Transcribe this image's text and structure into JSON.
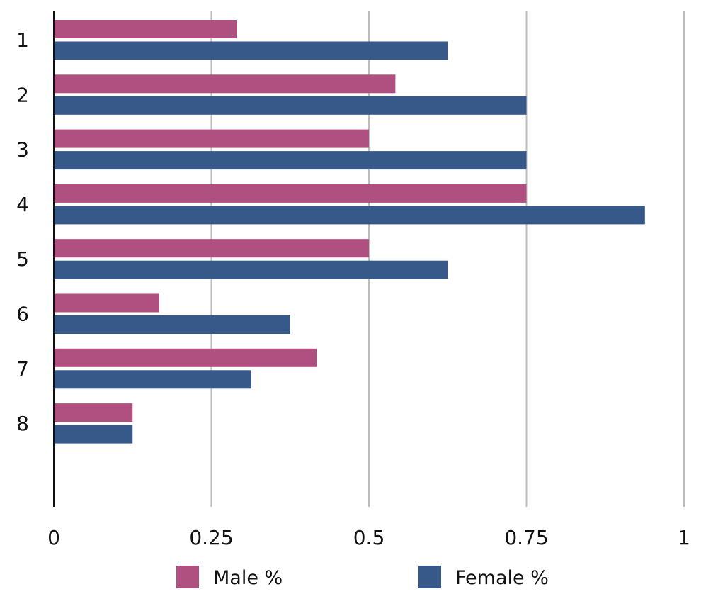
{
  "chart_data": {
    "type": "bar",
    "orientation": "horizontal",
    "categories": [
      "1",
      "2",
      "3",
      "4",
      "5",
      "6",
      "7",
      "8"
    ],
    "series": [
      {
        "name": "Male %",
        "color": "#b05080",
        "values": [
          0.29,
          0.542,
          0.5,
          0.75,
          0.5,
          0.167,
          0.417,
          0.125
        ]
      },
      {
        "name": "Female %",
        "color": "#375989",
        "values": [
          0.625,
          0.75,
          0.75,
          0.938,
          0.625,
          0.375,
          0.313,
          0.125
        ]
      }
    ],
    "xlim": [
      0,
      1
    ],
    "x_ticks": [
      "0",
      "0.25",
      "0.5",
      "0.75",
      "1"
    ],
    "x_tick_values": [
      0,
      0.25,
      0.5,
      0.75,
      1
    ],
    "grid": true,
    "legend_position": "bottom",
    "title": "",
    "xlabel": "",
    "ylabel": ""
  }
}
